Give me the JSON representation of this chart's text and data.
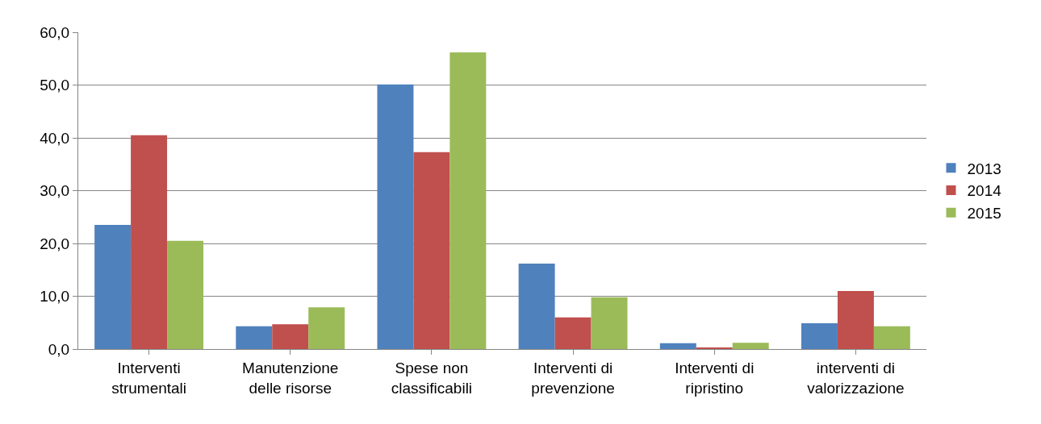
{
  "chart_data": {
    "type": "bar",
    "categories": [
      "Interventi\nstrumentali",
      "Manutenzione\ndelle risorse",
      "Spese non\nclassificabili",
      "Interventi di\nprevenzione",
      "Interventi di\nripristino",
      "interventi di\nvalorizzazione"
    ],
    "series": [
      {
        "name": "2013",
        "color": "#4f81bd",
        "values": [
          23.5,
          4.3,
          50.1,
          16.2,
          1.1,
          4.9
        ]
      },
      {
        "name": "2014",
        "color": "#c0504d",
        "values": [
          40.5,
          4.7,
          37.3,
          6.0,
          0.3,
          11.0
        ]
      },
      {
        "name": "2015",
        "color": "#9bbb59",
        "values": [
          20.5,
          7.9,
          56.2,
          9.8,
          1.2,
          4.3
        ]
      }
    ],
    "ylim": [
      0,
      60
    ],
    "yticks": [
      {
        "value": 0,
        "label": "0,0"
      },
      {
        "value": 10,
        "label": "10,0"
      },
      {
        "value": 20,
        "label": "20,0"
      },
      {
        "value": 30,
        "label": "30,0"
      },
      {
        "value": 40,
        "label": "40,0"
      },
      {
        "value": 50,
        "label": "50,0"
      },
      {
        "value": 60,
        "label": "60,0"
      }
    ],
    "grid": "y",
    "legend": "right"
  }
}
